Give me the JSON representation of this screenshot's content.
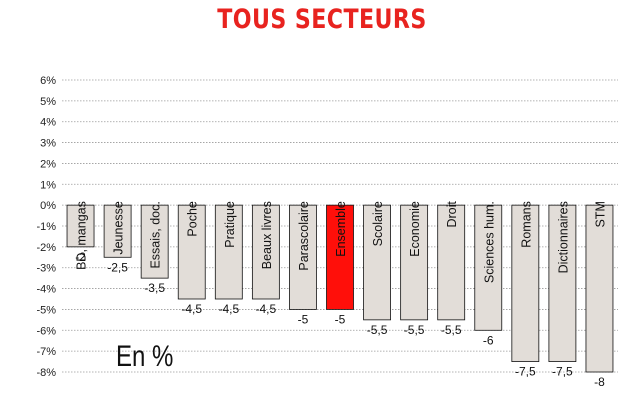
{
  "chart_data": {
    "type": "bar",
    "title": "TOUS SECTEURS",
    "unit_label": "En %",
    "categories": [
      "BD, mangas",
      "Jeunesse",
      "Essais, doc.",
      "Poche",
      "Pratique",
      "Beaux livres",
      "Parascolaire",
      "Ensemble",
      "Scolaire",
      "Economie",
      "Droit",
      "Sciences hum.",
      "Romans",
      "Dictionnaires",
      "STM"
    ],
    "values": [
      -2,
      -2.5,
      -3.5,
      -4.5,
      -4.5,
      -4.5,
      -5,
      -5,
      -5.5,
      -5.5,
      -5.5,
      -6,
      -7.5,
      -7.5,
      -8
    ],
    "value_labels": [
      "-2",
      "-2,5",
      "-3,5",
      "-4,5",
      "-4,5",
      "-4,5",
      "-5",
      "-5",
      "-5,5",
      "-5,5",
      "-5,5",
      "-6",
      "-7,5",
      "-7,5",
      "-8"
    ],
    "highlight_category": "Ensemble",
    "ylim": [
      -8,
      6
    ],
    "y_ticks": [
      "6%",
      "5%",
      "4%",
      "3%",
      "2%",
      "1%",
      "0%",
      "-1%",
      "-2%",
      "-3%",
      "-4%",
      "-5%",
      "-6%",
      "-7%",
      "-8%"
    ],
    "grid": true,
    "colors": {
      "bar": "#e2ddd8",
      "highlight": "#ff0f0a",
      "title": "#e8231f",
      "grid": "#9a9a9a"
    }
  }
}
